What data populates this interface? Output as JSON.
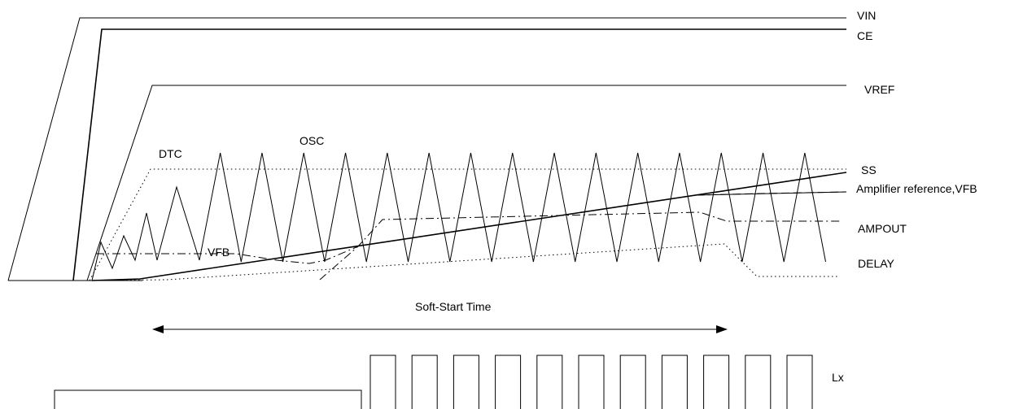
{
  "labels": {
    "vin": "VIN",
    "ce": "CE",
    "vref": "VREF",
    "dtc": "DTC",
    "osc": "OSC",
    "ss": "SS",
    "amp_ref_vfb": "Amplifier reference,VFB",
    "ampout": "AMPOUT",
    "delay": "DELAY",
    "vfb": "VFB",
    "soft_start": "Soft-Start Time",
    "lx": "Lx"
  }
}
